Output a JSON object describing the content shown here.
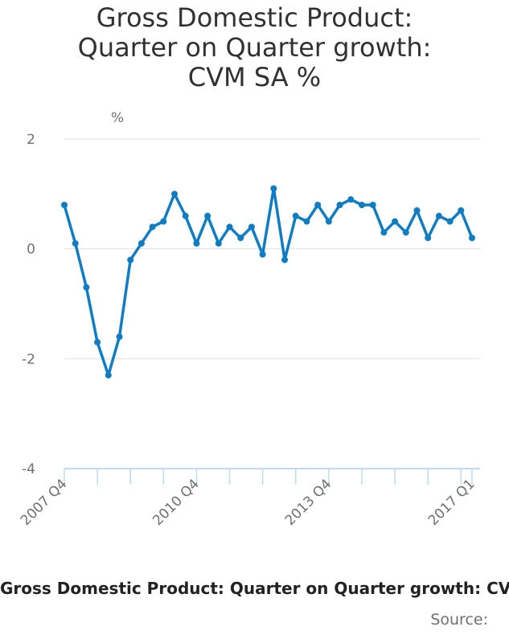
{
  "title_lines": [
    "Gross Domestic Product:",
    "Quarter on Quarter growth:",
    "CVM SA %"
  ],
  "y_unit": "%",
  "series_label": "Gross Domestic Product: Quarter on Quarter growth: CVM SA %",
  "source_label": "Source:",
  "colors": {
    "line": "#0F7CC3",
    "grid": "#e0e0e0",
    "axis": "#BDDCF0"
  },
  "chart_data": {
    "type": "line",
    "title": "Gross Domestic Product: Quarter on Quarter growth: CVM SA %",
    "ylabel": "%",
    "ylim": [
      -4,
      2
    ],
    "yticks": [
      2,
      0,
      -2,
      -4
    ],
    "x_tick_labels": [
      {
        "index": 0,
        "label": "2007 Q4"
      },
      {
        "index": 12,
        "label": "2010 Q4"
      },
      {
        "index": 24,
        "label": "2013 Q4"
      },
      {
        "index": 37,
        "label": "2017 Q1"
      }
    ],
    "grid": true,
    "series": [
      {
        "name": "Gross Domestic Product: Quarter on Quarter growth: CVM SA %",
        "x": [
          "2007 Q4",
          "2008 Q1",
          "2008 Q2",
          "2008 Q3",
          "2008 Q4",
          "2009 Q1",
          "2009 Q2",
          "2009 Q3",
          "2009 Q4",
          "2010 Q1",
          "2010 Q2",
          "2010 Q3",
          "2010 Q4",
          "2011 Q1",
          "2011 Q2",
          "2011 Q3",
          "2011 Q4",
          "2012 Q1",
          "2012 Q2",
          "2012 Q3",
          "2012 Q4",
          "2013 Q1",
          "2013 Q2",
          "2013 Q3",
          "2013 Q4",
          "2014 Q1",
          "2014 Q2",
          "2014 Q3",
          "2014 Q4",
          "2015 Q1",
          "2015 Q2",
          "2015 Q3",
          "2015 Q4",
          "2016 Q1",
          "2016 Q2",
          "2016 Q3",
          "2016 Q4",
          "2017 Q1"
        ],
        "values": [
          0.8,
          0.1,
          -0.7,
          -1.7,
          -2.3,
          -1.6,
          -0.2,
          0.1,
          0.4,
          0.5,
          1.0,
          0.6,
          0.1,
          0.6,
          0.1,
          0.4,
          0.2,
          0.4,
          -0.1,
          1.1,
          -0.2,
          0.6,
          0.5,
          0.8,
          0.5,
          0.8,
          0.9,
          0.8,
          0.8,
          0.3,
          0.5,
          0.3,
          0.7,
          0.2,
          0.6,
          0.5,
          0.7,
          0.2
        ]
      }
    ]
  }
}
